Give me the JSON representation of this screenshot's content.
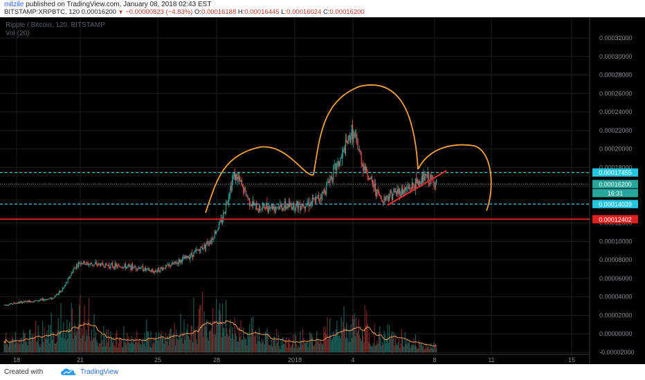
{
  "header": {
    "user": "mitzile",
    "published_text": "published on TradingView.com, January 08, 2018 02:43 EST"
  },
  "ticker": {
    "symbol": "BITSTAMP:XRPBTC, 120",
    "last": "0.00016200",
    "change": "−0.00000823 (−4.83%)",
    "o_label": "O:",
    "o": "0.00016188",
    "h_label": "H:",
    "h": "0.00016445",
    "l_label": "L:",
    "l": "0.00016024",
    "c_label": "C:",
    "c": "0.00016200"
  },
  "chart_data": {
    "type": "candlestick",
    "title": "Ripple / Bitcoin, 120, BITSTAMP",
    "volume_legend": "Vol (20)",
    "background": "#000000",
    "grid": true,
    "colors": {
      "up": "#26a69a",
      "down": "#ef5350",
      "drawing": "#f7a23a",
      "hline_cyan": "#25c7e0",
      "hline_red": "#e0201e",
      "trendline": "#ff2d2d"
    },
    "y_axis": {
      "ticks": [
        "0.00032000",
        "0.00030000",
        "0.00028000",
        "0.00026000",
        "0.00024000",
        "0.00022000",
        "0.00020000",
        "0.00018000",
        "0.00016000",
        "0.00014000",
        "0.00012000",
        "0.00010000",
        "0.00008000",
        "0.00006000",
        "0.00004000",
        "0.00002000",
        "0.00000000",
        "-0.00002000"
      ],
      "range": [
        -2e-05,
        0.00032
      ]
    },
    "x_axis": {
      "ticks": [
        "18",
        "21",
        "25",
        "28",
        "2018",
        "4",
        "8",
        "11",
        "15"
      ]
    },
    "price_labels": [
      {
        "value": 0.00017455,
        "text": "0.00017455",
        "color": "#25c7e0"
      },
      {
        "value": 0.000162,
        "text": "0.00016200",
        "color": "#26a69a"
      },
      {
        "value": 0.00014039,
        "text": "0.00014039",
        "color": "#25c7e0"
      },
      {
        "value": 0.00012402,
        "text": "0.00012402",
        "color": "#e0201e"
      }
    ],
    "countdown": "16:31",
    "horizontal_lines": [
      {
        "value": 0.00017455,
        "style": "dashed",
        "color": "#25c7e0"
      },
      {
        "value": 0.00014039,
        "style": "dashed",
        "color": "#25c7e0"
      },
      {
        "value": 0.00012402,
        "style": "solid",
        "color": "#e0201e"
      },
      {
        "value": 0.000162,
        "style": "dotted",
        "color": "#777777"
      }
    ],
    "price_anchors": [
      [
        0,
        3.12e-05
      ],
      [
        10,
        3.28e-05
      ],
      [
        20,
        3.43e-05
      ],
      [
        40,
        3.62e-05
      ],
      [
        55,
        3.85e-05
      ],
      [
        66,
        4.7e-05
      ],
      [
        72,
        5.6e-05
      ],
      [
        80,
        7.1e-05
      ],
      [
        87,
        7.75e-05
      ],
      [
        95,
        7.55e-05
      ],
      [
        110,
        7.5e-05
      ],
      [
        130,
        7.3e-05
      ],
      [
        155,
        7.18e-05
      ],
      [
        170,
        6.72e-05
      ],
      [
        180,
        7.05e-05
      ],
      [
        195,
        7.6e-05
      ],
      [
        210,
        8.3e-05
      ],
      [
        225,
        9.2e-05
      ],
      [
        238,
        0.000103
      ],
      [
        250,
        0.000125
      ],
      [
        258,
        0.000155
      ],
      [
        263,
        0.000172
      ],
      [
        270,
        0.000164
      ],
      [
        280,
        0.000145
      ],
      [
        290,
        0.000135
      ],
      [
        300,
        0.000138
      ],
      [
        320,
        0.0001375
      ],
      [
        340,
        0.00014
      ],
      [
        355,
        0.000143
      ],
      [
        365,
        0.000152
      ],
      [
        375,
        0.000172
      ],
      [
        385,
        0.000188
      ],
      [
        392,
        0.000205
      ],
      [
        398,
        0.000218
      ],
      [
        403,
        0.000208
      ],
      [
        410,
        0.000185
      ],
      [
        420,
        0.000165
      ],
      [
        432,
        0.000145
      ],
      [
        445,
        0.000152
      ],
      [
        460,
        0.000156
      ],
      [
        472,
        0.000162
      ],
      [
        482,
        0.00017
      ],
      [
        490,
        0.000165
      ],
      [
        495,
        0.000162
      ]
    ],
    "volume_profile": [
      [
        0,
        0.25
      ],
      [
        60,
        0.5
      ],
      [
        85,
        0.8
      ],
      [
        110,
        0.35
      ],
      [
        160,
        0.3
      ],
      [
        185,
        0.45
      ],
      [
        245,
        0.8
      ],
      [
        270,
        0.6
      ],
      [
        300,
        0.3
      ],
      [
        350,
        0.25
      ],
      [
        375,
        0.5
      ],
      [
        395,
        0.7
      ],
      [
        415,
        0.5
      ],
      [
        440,
        0.4
      ],
      [
        470,
        0.2
      ],
      [
        495,
        0.15
      ]
    ]
  },
  "footer": {
    "created_with": "Created with",
    "brand": "TradingView"
  }
}
